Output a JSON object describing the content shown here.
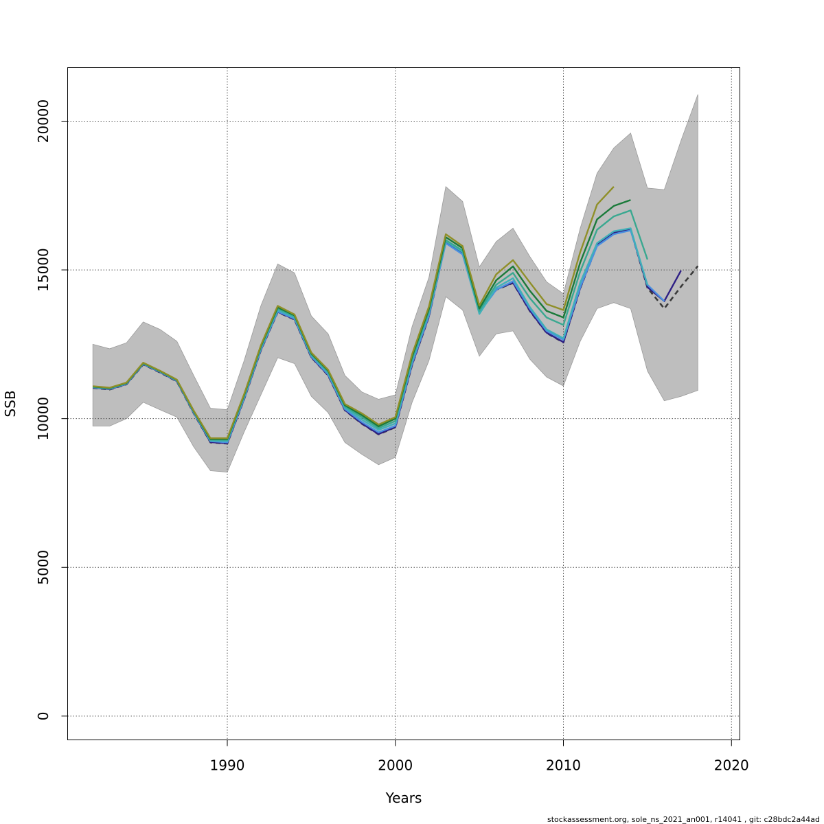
{
  "chart_data": {
    "type": "line",
    "title": "",
    "xlabel": "Years",
    "ylabel": "SSB",
    "xlim": [
      1980.5,
      2020.5
    ],
    "ylim": [
      -800,
      21800
    ],
    "xticks": [
      1990,
      2000,
      2010,
      2020
    ],
    "yticks": [
      0,
      5000,
      10000,
      15000,
      20000
    ],
    "grid": true,
    "legend": "none",
    "colors": {
      "band": "#bebebe",
      "band_edge": "#9a9a9a",
      "grid": "#555555",
      "reference_dashed": "#3a3a3a"
    },
    "confidence_band": {
      "x": [
        1982,
        1983,
        1984,
        1985,
        1986,
        1987,
        1988,
        1989,
        1990,
        1991,
        1992,
        1993,
        1994,
        1995,
        1996,
        1997,
        1998,
        1999,
        2000,
        2001,
        2002,
        2003,
        2004,
        2005,
        2006,
        2007,
        2008,
        2009,
        2010,
        2011,
        2012,
        2013,
        2014,
        2015,
        2016,
        2017,
        2018
      ],
      "upper": [
        12500,
        12350,
        12550,
        13250,
        13000,
        12600,
        11450,
        10350,
        10300,
        11950,
        13800,
        15200,
        14900,
        13450,
        12850,
        11450,
        10900,
        10650,
        10800,
        13100,
        14750,
        17800,
        17300,
        15100,
        15950,
        16400,
        15450,
        14600,
        14200,
        16400,
        18250,
        19100,
        19600,
        17750,
        17700,
        19350,
        20900
      ],
      "lower": [
        9750,
        9750,
        10000,
        10550,
        10300,
        10050,
        9050,
        8250,
        8200,
        9550,
        10800,
        12050,
        11850,
        10750,
        10200,
        9200,
        8800,
        8450,
        8700,
        10550,
        11950,
        14100,
        13650,
        12100,
        12850,
        12950,
        12000,
        11400,
        11100,
        12600,
        13700,
        13900,
        13700,
        11600,
        10600,
        10750,
        10950
      ]
    },
    "series": [
      {
        "color": "#3a3a3a",
        "dashed": true,
        "x": [
          1982,
          1983,
          1984,
          1985,
          1986,
          1987,
          1988,
          1989,
          1990,
          1991,
          1992,
          1993,
          1994,
          1995,
          1996,
          1997,
          1998,
          1999,
          2000,
          2001,
          2002,
          2003,
          2004,
          2005,
          2006,
          2007,
          2008,
          2009,
          2010,
          2011,
          2012,
          2013,
          2014,
          2015,
          2016,
          2017,
          2018
        ],
        "values": [
          11030,
          10980,
          11150,
          11820,
          11550,
          11250,
          10180,
          9200,
          9160,
          10650,
          12300,
          13580,
          13330,
          12060,
          11450,
          10280,
          9830,
          9470,
          9710,
          11810,
          13430,
          15940,
          15550,
          13590,
          14330,
          14560,
          13620,
          12880,
          12560,
          14380,
          15830,
          16250,
          16360,
          14400,
          13700,
          14440,
          15130
        ]
      },
      {
        "color": "#2e1f85",
        "dashed": false,
        "x": [
          1982,
          1983,
          1984,
          1985,
          1986,
          1987,
          1988,
          1989,
          1990,
          1991,
          1992,
          1993,
          1994,
          1995,
          1996,
          1997,
          1998,
          1999,
          2000,
          2001,
          2002,
          2003,
          2004,
          2005,
          2006,
          2007,
          2008,
          2009,
          2010,
          2011,
          2012,
          2013,
          2014,
          2015,
          2016,
          2017
        ],
        "values": [
          11040,
          10990,
          11160,
          11830,
          11560,
          11260,
          10190,
          9210,
          9170,
          10660,
          12310,
          13590,
          13340,
          12070,
          11460,
          10290,
          9840,
          9480,
          9720,
          11820,
          13440,
          15950,
          15560,
          13600,
          14340,
          14570,
          13630,
          12890,
          12570,
          14390,
          15840,
          16260,
          16370,
          14420,
          13950,
          14980
        ]
      },
      {
        "color": "#4a90e0",
        "dashed": false,
        "x": [
          1982,
          1983,
          1984,
          1985,
          1986,
          1987,
          1988,
          1989,
          1990,
          1991,
          1992,
          1993,
          1994,
          1995,
          1996,
          1997,
          1998,
          1999,
          2000,
          2001,
          2002,
          2003,
          2004,
          2005,
          2006,
          2007,
          2008,
          2009,
          2010,
          2011,
          2012,
          2013,
          2014,
          2015,
          2016
        ],
        "values": [
          11050,
          11000,
          11170,
          11840,
          11570,
          11270,
          10200,
          9240,
          9200,
          10680,
          12330,
          13600,
          13360,
          12090,
          11480,
          10320,
          9890,
          9540,
          9760,
          11860,
          13470,
          15900,
          15520,
          13560,
          14330,
          14620,
          13700,
          12950,
          12650,
          14420,
          15800,
          16200,
          16330,
          14500,
          13950
        ]
      },
      {
        "color": "#40b0b8",
        "dashed": false,
        "x": [
          1982,
          1983,
          1984,
          1985,
          1986,
          1987,
          1988,
          1989,
          1990,
          1991,
          1992,
          1993,
          1994,
          1995,
          1996,
          1997,
          1998,
          1999,
          2000,
          2001,
          2002,
          2003,
          2004,
          2005,
          2006,
          2007,
          2008,
          2009,
          2010,
          2011,
          2012,
          2013,
          2014,
          2015
        ],
        "values": [
          11060,
          11010,
          11180,
          11850,
          11580,
          11280,
          10220,
          9260,
          9240,
          10720,
          12370,
          13650,
          13400,
          12130,
          11530,
          10370,
          9970,
          9620,
          9840,
          11950,
          13560,
          15970,
          15600,
          13520,
          14400,
          14720,
          13750,
          13000,
          12700,
          14570,
          15900,
          16300,
          16400,
          14480
        ]
      },
      {
        "color": "#3aa890",
        "dashed": false,
        "x": [
          1982,
          1983,
          1984,
          1985,
          1986,
          1987,
          1988,
          1989,
          1990,
          1991,
          1992,
          1993,
          1994,
          1995,
          1996,
          1997,
          1998,
          1999,
          2000,
          2001,
          2002,
          2003,
          2004,
          2005,
          2006,
          2007,
          2008,
          2009,
          2010,
          2011,
          2012,
          2013,
          2014,
          2015
        ],
        "values": [
          11070,
          11020,
          11190,
          11860,
          11590,
          11290,
          10240,
          9290,
          9280,
          10760,
          12410,
          13700,
          13440,
          12160,
          11570,
          10410,
          10050,
          9680,
          9920,
          12020,
          13620,
          16000,
          15650,
          13620,
          14500,
          14900,
          14050,
          13400,
          13150,
          14950,
          16350,
          16800,
          17000,
          15350
        ]
      },
      {
        "color": "#1a7a3a",
        "dashed": false,
        "x": [
          1982,
          1983,
          1984,
          1985,
          1986,
          1987,
          1988,
          1989,
          1990,
          1991,
          1992,
          1993,
          1994,
          1995,
          1996,
          1997,
          1998,
          1999,
          2000,
          2001,
          2002,
          2003,
          2004,
          2005,
          2006,
          2007,
          2008,
          2009,
          2010,
          2011,
          2012,
          2013,
          2014
        ],
        "values": [
          11080,
          11030,
          11200,
          11870,
          11600,
          11300,
          10250,
          9310,
          9310,
          10790,
          12440,
          13740,
          13470,
          12190,
          11610,
          10450,
          10120,
          9740,
          10000,
          12090,
          13690,
          16100,
          15730,
          13700,
          14650,
          15120,
          14300,
          13620,
          13400,
          15250,
          16700,
          17150,
          17350
        ]
      },
      {
        "color": "#8f8f28",
        "dashed": false,
        "x": [
          1982,
          1983,
          1984,
          1985,
          1986,
          1987,
          1988,
          1989,
          1990,
          1991,
          1992,
          1993,
          1994,
          1995,
          1996,
          1997,
          1998,
          1999,
          2000,
          2001,
          2002,
          2003,
          2004,
          2005,
          2006,
          2007,
          2008,
          2009,
          2010,
          2011,
          2012,
          2013
        ],
        "values": [
          11090,
          11040,
          11210,
          11880,
          11610,
          11310,
          10270,
          9340,
          9340,
          10820,
          12470,
          13790,
          13500,
          12220,
          11640,
          10490,
          10180,
          9800,
          10050,
          12170,
          13770,
          16200,
          15800,
          13800,
          14850,
          15330,
          14580,
          13850,
          13650,
          15600,
          17200,
          17800
        ]
      }
    ]
  },
  "footer": {
    "text": "stockassessment.org, sole_ns_2021_an001, r14041 , git: c28bdc2a44ad"
  }
}
